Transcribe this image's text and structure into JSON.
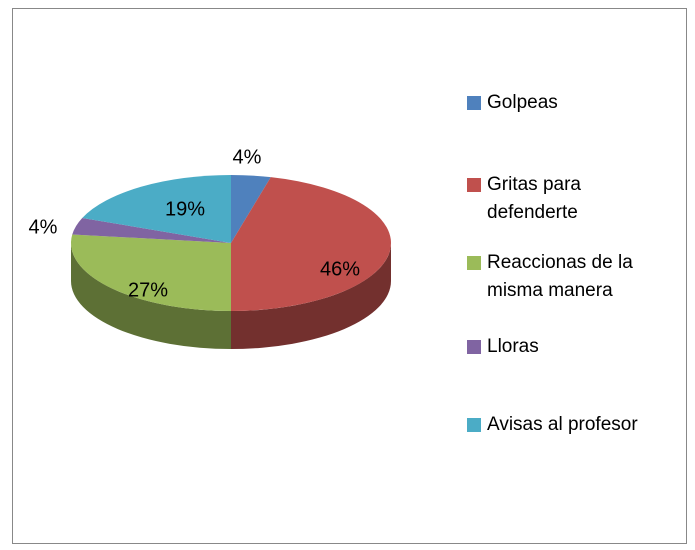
{
  "chart_data": {
    "type": "pie",
    "three_d": true,
    "categories": [
      "Golpeas",
      "Gritas para defenderte",
      "Reaccionas de la misma manera",
      "Lloras",
      "Avisas al profesor"
    ],
    "values": [
      4,
      46,
      27,
      4,
      19
    ],
    "value_labels": [
      "4%",
      "46%",
      "27%",
      "4%",
      "19%"
    ],
    "colors": [
      "#4f81bd",
      "#c0504d",
      "#9bbb59",
      "#8064a2",
      "#4bacc6"
    ],
    "legend": "right"
  }
}
